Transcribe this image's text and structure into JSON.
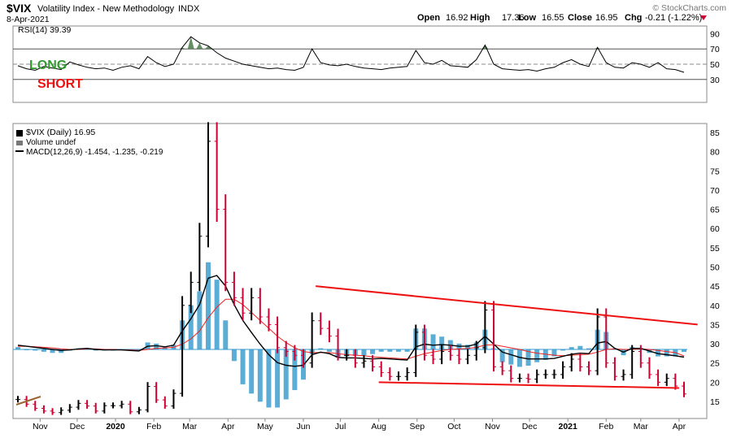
{
  "header": {
    "symbol": "$VIX",
    "name": "Volatility Index - New Methodology",
    "exchange": "INDX",
    "date": "8-Apr-2021",
    "source": "© StockCharts.com",
    "ohlc": [
      {
        "label": "Open",
        "value": "16.92"
      },
      {
        "label": "High",
        "value": "17.36"
      },
      {
        "label": "Low",
        "value": "16.55"
      },
      {
        "label": "Close",
        "value": "16.95"
      },
      {
        "label": "Chg",
        "value": "-0.21 (-1.22%)"
      }
    ]
  },
  "colors": {
    "up_bar": "#000000",
    "down_bar": "#cc0033",
    "histogram": "#3399cc",
    "macd_line": "#000000",
    "signal_line": "#ee2222",
    "trendline": "#ee1111",
    "long_text": "#339933",
    "short_text": "#ee1111",
    "rsi_fill": "#4a7a4a",
    "grid": "#dddddd"
  },
  "chart_data": [
    {
      "type": "line",
      "title": "RSI(14) 39.39",
      "ylim": [
        0,
        100
      ],
      "y_ticks": [
        30,
        50,
        70,
        90
      ],
      "reference_lines": [
        30,
        50,
        70
      ],
      "annotations": [
        "LONG",
        "SHORT"
      ],
      "series": [
        {
          "name": "RSI(14)",
          "x": [
            "2019-10-14",
            "2019-10-21",
            "2019-10-28",
            "2019-11-04",
            "2019-11-11",
            "2019-11-18",
            "2019-11-25",
            "2019-12-02",
            "2019-12-09",
            "2019-12-16",
            "2019-12-23",
            "2019-12-30",
            "2020-01-06",
            "2020-01-13",
            "2020-01-20",
            "2020-01-27",
            "2020-02-03",
            "2020-02-10",
            "2020-02-17",
            "2020-02-24",
            "2020-03-02",
            "2020-03-09",
            "2020-03-16",
            "2020-03-23",
            "2020-03-30",
            "2020-04-06",
            "2020-04-13",
            "2020-04-20",
            "2020-04-27",
            "2020-05-04",
            "2020-05-11",
            "2020-05-18",
            "2020-05-25",
            "2020-06-01",
            "2020-06-08",
            "2020-06-15",
            "2020-06-22",
            "2020-06-29",
            "2020-07-06",
            "2020-07-13",
            "2020-07-20",
            "2020-07-27",
            "2020-08-03",
            "2020-08-10",
            "2020-08-17",
            "2020-08-24",
            "2020-08-31",
            "2020-09-07",
            "2020-09-14",
            "2020-09-21",
            "2020-09-28",
            "2020-10-05",
            "2020-10-12",
            "2020-10-19",
            "2020-10-26",
            "2020-11-02",
            "2020-11-09",
            "2020-11-16",
            "2020-11-23",
            "2020-11-30",
            "2020-12-07",
            "2020-12-14",
            "2020-12-21",
            "2020-12-28",
            "2021-01-04",
            "2021-01-11",
            "2021-01-18",
            "2021-01-25",
            "2021-02-01",
            "2021-02-08",
            "2021-02-15",
            "2021-02-22",
            "2021-03-01",
            "2021-03-08",
            "2021-03-15",
            "2021-03-22",
            "2021-03-29",
            "2021-04-05"
          ],
          "values": [
            48,
            44,
            42,
            47,
            45,
            43,
            53,
            49,
            46,
            44,
            45,
            42,
            46,
            48,
            44,
            60,
            52,
            47,
            50,
            72,
            86,
            78,
            74,
            65,
            58,
            54,
            50,
            48,
            46,
            44,
            45,
            43,
            42,
            46,
            70,
            52,
            49,
            48,
            50,
            47,
            45,
            44,
            43,
            45,
            46,
            47,
            68,
            52,
            50,
            55,
            48,
            47,
            46,
            56,
            75,
            50,
            44,
            43,
            42,
            43,
            41,
            44,
            46,
            52,
            56,
            50,
            47,
            72,
            52,
            46,
            45,
            52,
            50,
            46,
            52,
            44,
            43,
            39.39
          ]
        }
      ]
    },
    {
      "type": "line",
      "title": "$VIX (Daily) 16.95",
      "legend": [
        "$VIX (Daily) 16.95",
        "Volume undef",
        "MACD(12,26,9) -1.454, -1.235, -0.219"
      ],
      "ylim": [
        10,
        90
      ],
      "y_ticks": [
        15,
        20,
        25,
        30,
        35,
        40,
        45,
        50,
        55,
        60,
        65,
        70,
        75,
        80,
        85
      ],
      "x_tick_labels": [
        "Nov",
        "Dec",
        "2020",
        "Feb",
        "Mar",
        "Apr",
        "May",
        "Jun",
        "Jul",
        "Aug",
        "Sep",
        "Oct",
        "Nov",
        "Dec",
        "2021",
        "Feb",
        "Mar",
        "Apr"
      ],
      "grid": false,
      "series": [
        {
          "name": "$VIX (Daily)",
          "x": [
            "2019-10-14",
            "2019-10-21",
            "2019-10-28",
            "2019-11-04",
            "2019-11-11",
            "2019-11-18",
            "2019-11-25",
            "2019-12-02",
            "2019-12-09",
            "2019-12-16",
            "2019-12-23",
            "2019-12-30",
            "2020-01-06",
            "2020-01-13",
            "2020-01-20",
            "2020-01-27",
            "2020-02-03",
            "2020-02-10",
            "2020-02-17",
            "2020-02-24",
            "2020-03-02",
            "2020-03-09",
            "2020-03-16",
            "2020-03-23",
            "2020-03-30",
            "2020-04-06",
            "2020-04-13",
            "2020-04-20",
            "2020-04-27",
            "2020-05-04",
            "2020-05-11",
            "2020-05-18",
            "2020-05-25",
            "2020-06-01",
            "2020-06-08",
            "2020-06-15",
            "2020-06-22",
            "2020-06-29",
            "2020-07-06",
            "2020-07-13",
            "2020-07-20",
            "2020-07-27",
            "2020-08-03",
            "2020-08-10",
            "2020-08-17",
            "2020-08-24",
            "2020-08-31",
            "2020-09-07",
            "2020-09-14",
            "2020-09-21",
            "2020-09-28",
            "2020-10-05",
            "2020-10-12",
            "2020-10-19",
            "2020-10-26",
            "2020-11-02",
            "2020-11-09",
            "2020-11-16",
            "2020-11-23",
            "2020-11-30",
            "2020-12-07",
            "2020-12-14",
            "2020-12-21",
            "2020-12-28",
            "2021-01-04",
            "2021-01-11",
            "2021-01-18",
            "2021-01-25",
            "2021-02-01",
            "2021-02-08",
            "2021-02-15",
            "2021-02-22",
            "2021-03-01",
            "2021-03-08",
            "2021-03-15",
            "2021-03-22",
            "2021-03-29",
            "2021-04-05"
          ],
          "values": [
            15.5,
            14.3,
            13.2,
            12.5,
            12.1,
            12.7,
            13.5,
            14.5,
            13.8,
            12.5,
            13.9,
            13.9,
            14.3,
            12.3,
            12.8,
            18.9,
            15.4,
            13.8,
            17.1,
            40,
            46,
            58,
            82.7,
            65,
            46,
            42,
            38,
            42,
            37,
            35,
            29,
            28,
            27,
            25,
            36,
            34,
            32,
            27,
            27,
            25,
            25.5,
            24,
            22.5,
            21.5,
            21.5,
            22.5,
            33,
            27,
            26,
            28,
            27,
            26,
            27,
            29,
            38.8,
            24,
            23,
            21,
            21,
            20.8,
            22,
            22,
            22,
            24,
            26,
            24,
            23,
            37,
            25,
            21.5,
            22,
            28,
            25,
            22,
            20,
            21,
            19,
            16.95
          ]
        }
      ],
      "indicators": {
        "macd": {
          "macd": -1.454,
          "signal": -1.235,
          "histogram": -0.219,
          "series": [
            {
              "name": "MACD",
              "values": [
                0.8,
                0.6,
                0.4,
                0.2,
                0.0,
                -0.2,
                -0.1,
                0.1,
                0.2,
                0.0,
                -0.1,
                -0.1,
                -0.1,
                -0.2,
                -0.3,
                0.6,
                0.7,
                0.5,
                0.8,
                3.5,
                5.8,
                8.5,
                13.5,
                14.0,
                12.0,
                8.5,
                5.5,
                3.2,
                1.0,
                -1.0,
                -2.5,
                -3.0,
                -3.2,
                -3.0,
                -1.0,
                -0.5,
                -0.8,
                -1.5,
                -1.6,
                -1.6,
                -1.7,
                -1.8,
                -1.7,
                -1.8,
                -1.9,
                -2.0,
                0.5,
                1.0,
                0.8,
                0.9,
                0.8,
                0.6,
                0.6,
                1.0,
                2.5,
                1.0,
                -0.5,
                -1.0,
                -1.5,
                -1.8,
                -1.8,
                -1.8,
                -1.7,
                -1.3,
                -0.9,
                -0.7,
                -0.8,
                1.2,
                1.5,
                0.2,
                -0.5,
                0.2,
                0.2,
                -0.3,
                -0.8,
                -1.0,
                -1.2,
                -1.454
              ]
            },
            {
              "name": "Signal",
              "values": [
                0.6,
                0.6,
                0.5,
                0.4,
                0.3,
                0.1,
                0.0,
                0.0,
                0.1,
                0.1,
                0.0,
                0.0,
                -0.1,
                -0.1,
                -0.2,
                0.0,
                0.2,
                0.3,
                0.4,
                1.0,
                2.0,
                3.5,
                6.0,
                8.0,
                9.5,
                9.5,
                8.5,
                7.0,
                5.5,
                4.0,
                2.5,
                1.3,
                0.3,
                -0.4,
                -0.6,
                -0.6,
                -0.6,
                -0.8,
                -1.0,
                -1.1,
                -1.2,
                -1.4,
                -1.5,
                -1.6,
                -1.7,
                -1.8,
                -1.3,
                -0.8,
                -0.5,
                -0.2,
                0.0,
                0.1,
                0.2,
                0.4,
                0.8,
                0.9,
                0.6,
                0.3,
                0.0,
                -0.4,
                -0.7,
                -0.9,
                -1.1,
                -1.2,
                -1.1,
                -1.0,
                -0.9,
                -0.5,
                0.0,
                0.1,
                0.0,
                0.0,
                0.1,
                0.0,
                -0.2,
                -0.4,
                -0.6,
                -1.235
              ]
            }
          ]
        }
      },
      "annotations": [
        {
          "type": "trendline",
          "from": {
            "x": "2020-06-11",
            "y": 45
          },
          "to": {
            "x": "2021-04-16",
            "y": 35
          }
        },
        {
          "type": "trendline",
          "from": {
            "x": "2020-08-01",
            "y": 20
          },
          "to": {
            "x": "2021-04-01",
            "y": 18.5
          }
        }
      ]
    }
  ]
}
